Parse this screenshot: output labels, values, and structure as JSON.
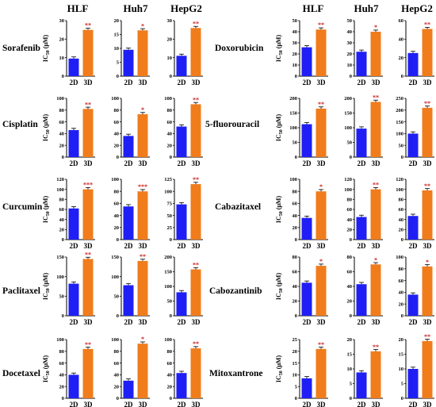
{
  "colors": {
    "bar_2d": "#1f1ff5",
    "bar_3d": "#f07c1c",
    "star": "#cc1f1f",
    "axis": "#000000"
  },
  "column_headers_left": [
    "HLF",
    "Huh7",
    "HepG2"
  ],
  "column_headers_right": [
    "HLF",
    "Huh7",
    "HepG2"
  ],
  "drugs_left": [
    "Sorafenib",
    "Cisplatin",
    "Curcumin",
    "Paclitaxel",
    "Docetaxel"
  ],
  "drugs_right": [
    "Doxorubicin",
    "5-fluorouracil",
    "Cabazitaxel",
    "Cabozantinib",
    "Mitoxantrone"
  ],
  "ylabel_main": "IC",
  "ylabel_sub": "50",
  "ylabel_unit": " (μM)",
  "chart_data": [
    {
      "type": "bar",
      "drug": "Sorafenib",
      "cell": "HLF",
      "categories": [
        "2D",
        "3D"
      ],
      "values": [
        9.5,
        25
      ],
      "ylim": [
        0,
        30
      ],
      "ticks": [
        0,
        10,
        20,
        30
      ],
      "sig": "**"
    },
    {
      "type": "bar",
      "drug": "Sorafenib",
      "cell": "Huh7",
      "categories": [
        "2D",
        "3D"
      ],
      "values": [
        9.5,
        16.5
      ],
      "ylim": [
        0,
        20
      ],
      "ticks": [
        0,
        5,
        10,
        15,
        20
      ],
      "sig": "*"
    },
    {
      "type": "bar",
      "drug": "Sorafenib",
      "cell": "HepG2",
      "categories": [
        "2D",
        "3D"
      ],
      "values": [
        11,
        26
      ],
      "ylim": [
        0,
        30
      ],
      "ticks": [
        0,
        10,
        20,
        30
      ],
      "sig": "**"
    },
    {
      "type": "bar",
      "drug": "Doxorubicin",
      "cell": "HLF",
      "categories": [
        "2D",
        "3D"
      ],
      "values": [
        26,
        42
      ],
      "ylim": [
        0,
        50
      ],
      "ticks": [
        0,
        10,
        20,
        30,
        40,
        50
      ],
      "sig": "**"
    },
    {
      "type": "bar",
      "drug": "Doxorubicin",
      "cell": "Huh7",
      "categories": [
        "2D",
        "3D"
      ],
      "values": [
        22,
        40
      ],
      "ylim": [
        0,
        50
      ],
      "ticks": [
        0,
        10,
        20,
        30,
        40,
        50
      ],
      "sig": "*"
    },
    {
      "type": "bar",
      "drug": "Doxorubicin",
      "cell": "HepG2",
      "categories": [
        "2D",
        "3D"
      ],
      "values": [
        25,
        51
      ],
      "ylim": [
        0,
        60
      ],
      "ticks": [
        0,
        20,
        40,
        60
      ],
      "sig": "**"
    },
    {
      "type": "bar",
      "drug": "Cisplatin",
      "cell": "HLF",
      "categories": [
        "2D",
        "3D"
      ],
      "values": [
        46,
        82
      ],
      "ylim": [
        0,
        100
      ],
      "ticks": [
        0,
        20,
        40,
        60,
        80,
        100
      ],
      "sig": "**"
    },
    {
      "type": "bar",
      "drug": "Cisplatin",
      "cell": "Huh7",
      "categories": [
        "2D",
        "3D"
      ],
      "values": [
        36,
        73
      ],
      "ylim": [
        0,
        100
      ],
      "ticks": [
        0,
        20,
        40,
        60,
        80,
        100
      ],
      "sig": "*"
    },
    {
      "type": "bar",
      "drug": "Cisplatin",
      "cell": "HepG2",
      "categories": [
        "2D",
        "3D"
      ],
      "values": [
        52,
        90
      ],
      "ylim": [
        0,
        100
      ],
      "ticks": [
        0,
        20,
        40,
        60,
        80,
        100
      ],
      "sig": "**"
    },
    {
      "type": "bar",
      "drug": "5-fluorouracil",
      "cell": "HLF",
      "categories": [
        "2D",
        "3D"
      ],
      "values": [
        112,
        165
      ],
      "ylim": [
        0,
        200
      ],
      "ticks": [
        0,
        50,
        100,
        150,
        200
      ],
      "sig": "**"
    },
    {
      "type": "bar",
      "drug": "5-fluorouracil",
      "cell": "Huh7",
      "categories": [
        "2D",
        "3D"
      ],
      "values": [
        97,
        188
      ],
      "ylim": [
        0,
        200
      ],
      "ticks": [
        0,
        50,
        100,
        150,
        200
      ],
      "sig": "**"
    },
    {
      "type": "bar",
      "drug": "5-fluorouracil",
      "cell": "HepG2",
      "categories": [
        "2D",
        "3D"
      ],
      "values": [
        100,
        210
      ],
      "ylim": [
        0,
        250
      ],
      "ticks": [
        0,
        50,
        100,
        150,
        200,
        250
      ],
      "sig": "**"
    },
    {
      "type": "bar",
      "drug": "Curcumin",
      "cell": "HLF",
      "categories": [
        "2D",
        "3D"
      ],
      "values": [
        62,
        100
      ],
      "ylim": [
        0,
        120
      ],
      "ticks": [
        0,
        20,
        40,
        60,
        80,
        100,
        120
      ],
      "sig": "***"
    },
    {
      "type": "bar",
      "drug": "Curcumin",
      "cell": "Huh7",
      "categories": [
        "2D",
        "3D"
      ],
      "values": [
        55,
        80
      ],
      "ylim": [
        0,
        100
      ],
      "ticks": [
        0,
        20,
        40,
        60,
        80,
        100
      ],
      "sig": "***"
    },
    {
      "type": "bar",
      "drug": "Curcumin",
      "cell": "HepG2",
      "categories": [
        "2D",
        "3D"
      ],
      "values": [
        73,
        115
      ],
      "ylim": [
        0,
        125
      ],
      "ticks": [
        0,
        25,
        50,
        75,
        100,
        125
      ],
      "sig": "**"
    },
    {
      "type": "bar",
      "drug": "Cabazitaxel",
      "cell": "HLF",
      "categories": [
        "2D",
        "3D"
      ],
      "values": [
        36,
        80
      ],
      "ylim": [
        0,
        100
      ],
      "ticks": [
        0,
        20,
        40,
        60,
        80,
        100
      ],
      "sig": "*"
    },
    {
      "type": "bar",
      "drug": "Cabazitaxel",
      "cell": "Huh7",
      "categories": [
        "2D",
        "3D"
      ],
      "values": [
        45,
        100
      ],
      "ylim": [
        0,
        120
      ],
      "ticks": [
        0,
        20,
        40,
        60,
        80,
        100,
        120
      ],
      "sig": "**"
    },
    {
      "type": "bar",
      "drug": "Cabazitaxel",
      "cell": "HepG2",
      "categories": [
        "2D",
        "3D"
      ],
      "values": [
        47,
        98
      ],
      "ylim": [
        0,
        120
      ],
      "ticks": [
        0,
        20,
        40,
        60,
        80,
        100,
        120
      ],
      "sig": "**"
    },
    {
      "type": "bar",
      "drug": "Paclitaxel",
      "cell": "HLF",
      "categories": [
        "2D",
        "3D"
      ],
      "values": [
        82,
        145
      ],
      "ylim": [
        0,
        150
      ],
      "ticks": [
        0,
        50,
        100,
        150
      ],
      "sig": "**"
    },
    {
      "type": "bar",
      "drug": "Paclitaxel",
      "cell": "Huh7",
      "categories": [
        "2D",
        "3D"
      ],
      "values": [
        78,
        140
      ],
      "ylim": [
        0,
        150
      ],
      "ticks": [
        0,
        50,
        100,
        150
      ],
      "sig": "**"
    },
    {
      "type": "bar",
      "drug": "Paclitaxel",
      "cell": "HepG2",
      "categories": [
        "2D",
        "3D"
      ],
      "values": [
        80,
        158
      ],
      "ylim": [
        0,
        200
      ],
      "ticks": [
        0,
        50,
        100,
        150,
        200
      ],
      "sig": "**"
    },
    {
      "type": "bar",
      "drug": "Cabozantinib",
      "cell": "HLF",
      "categories": [
        "2D",
        "3D"
      ],
      "values": [
        45,
        68
      ],
      "ylim": [
        0,
        80
      ],
      "ticks": [
        0,
        20,
        40,
        60,
        80
      ],
      "sig": "*"
    },
    {
      "type": "bar",
      "drug": "Cabozantinib",
      "cell": "Huh7",
      "categories": [
        "2D",
        "3D"
      ],
      "values": [
        43,
        70
      ],
      "ylim": [
        0,
        80
      ],
      "ticks": [
        0,
        20,
        40,
        60,
        80
      ],
      "sig": "*"
    },
    {
      "type": "bar",
      "drug": "Cabozantinib",
      "cell": "HepG2",
      "categories": [
        "2D",
        "3D"
      ],
      "values": [
        36,
        84
      ],
      "ylim": [
        0,
        100
      ],
      "ticks": [
        0,
        20,
        40,
        60,
        80,
        100
      ],
      "sig": "*"
    },
    {
      "type": "bar",
      "drug": "Docetaxel",
      "cell": "HLF",
      "categories": [
        "2D",
        "3D"
      ],
      "values": [
        40,
        84
      ],
      "ylim": [
        0,
        100
      ],
      "ticks": [
        0,
        20,
        40,
        60,
        80,
        100
      ],
      "sig": "**"
    },
    {
      "type": "bar",
      "drug": "Docetaxel",
      "cell": "Huh7",
      "categories": [
        "2D",
        "3D"
      ],
      "values": [
        30,
        93
      ],
      "ylim": [
        0,
        100
      ],
      "ticks": [
        0,
        20,
        40,
        60,
        80,
        100
      ],
      "sig": "*"
    },
    {
      "type": "bar",
      "drug": "Docetaxel",
      "cell": "HepG2",
      "categories": [
        "2D",
        "3D"
      ],
      "values": [
        43,
        85
      ],
      "ylim": [
        0,
        100
      ],
      "ticks": [
        0,
        20,
        40,
        60,
        80,
        100
      ],
      "sig": "**"
    },
    {
      "type": "bar",
      "drug": "Mitoxantrone",
      "cell": "HLF",
      "categories": [
        "2D",
        "3D"
      ],
      "values": [
        8.5,
        21
      ],
      "ylim": [
        0,
        25
      ],
      "ticks": [
        0,
        5,
        10,
        15,
        20,
        25
      ],
      "sig": "**"
    },
    {
      "type": "bar",
      "drug": "Mitoxantrone",
      "cell": "Huh7",
      "categories": [
        "2D",
        "3D"
      ],
      "values": [
        8.8,
        16
      ],
      "ylim": [
        0,
        20
      ],
      "ticks": [
        0,
        5,
        10,
        15,
        20
      ],
      "sig": "**"
    },
    {
      "type": "bar",
      "drug": "Mitoxantrone",
      "cell": "HepG2",
      "categories": [
        "2D",
        "3D"
      ],
      "values": [
        10,
        19.5
      ],
      "ylim": [
        0,
        20
      ],
      "ticks": [
        0,
        5,
        10,
        15,
        20
      ],
      "sig": "**"
    }
  ]
}
